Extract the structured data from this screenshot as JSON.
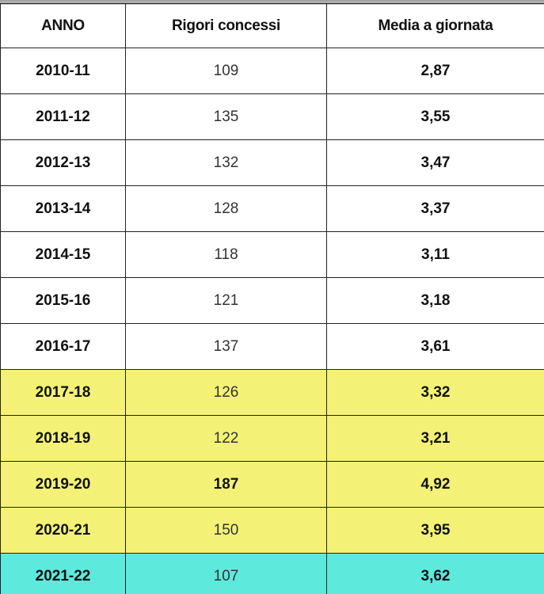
{
  "table": {
    "headers": [
      "ANNO",
      "Rigori concessi",
      "Media a giornata"
    ],
    "rows": [
      {
        "anno": "2010-11",
        "rigori": "109",
        "media": "2,87",
        "highlight": "none",
        "rigori_bold": false
      },
      {
        "anno": "2011-12",
        "rigori": "135",
        "media": "3,55",
        "highlight": "none",
        "rigori_bold": false
      },
      {
        "anno": "2012-13",
        "rigori": "132",
        "media": "3,47",
        "highlight": "none",
        "rigori_bold": false
      },
      {
        "anno": "2013-14",
        "rigori": "128",
        "media": "3,37",
        "highlight": "none",
        "rigori_bold": false
      },
      {
        "anno": "2014-15",
        "rigori": "118",
        "media": "3,11",
        "highlight": "none",
        "rigori_bold": false
      },
      {
        "anno": "2015-16",
        "rigori": "121",
        "media": "3,18",
        "highlight": "none",
        "rigori_bold": false
      },
      {
        "anno": "2016-17",
        "rigori": "137",
        "media": "3,61",
        "highlight": "none",
        "rigori_bold": false
      },
      {
        "anno": "2017-18",
        "rigori": "126",
        "media": "3,32",
        "highlight": "yellow",
        "rigori_bold": false
      },
      {
        "anno": "2018-19",
        "rigori": "122",
        "media": "3,21",
        "highlight": "yellow",
        "rigori_bold": false
      },
      {
        "anno": "2019-20",
        "rigori": "187",
        "media": "4,92",
        "highlight": "yellow",
        "rigori_bold": true
      },
      {
        "anno": "2020-21",
        "rigori": "150",
        "media": "3,95",
        "highlight": "yellow",
        "rigori_bold": false
      },
      {
        "anno": "2021-22",
        "rigori": "107",
        "media": "3,62",
        "highlight": "cyan",
        "rigori_bold": false
      }
    ]
  },
  "colors": {
    "yellow": "#f3f277",
    "cyan": "#5ee9dd",
    "border": "#222222"
  }
}
